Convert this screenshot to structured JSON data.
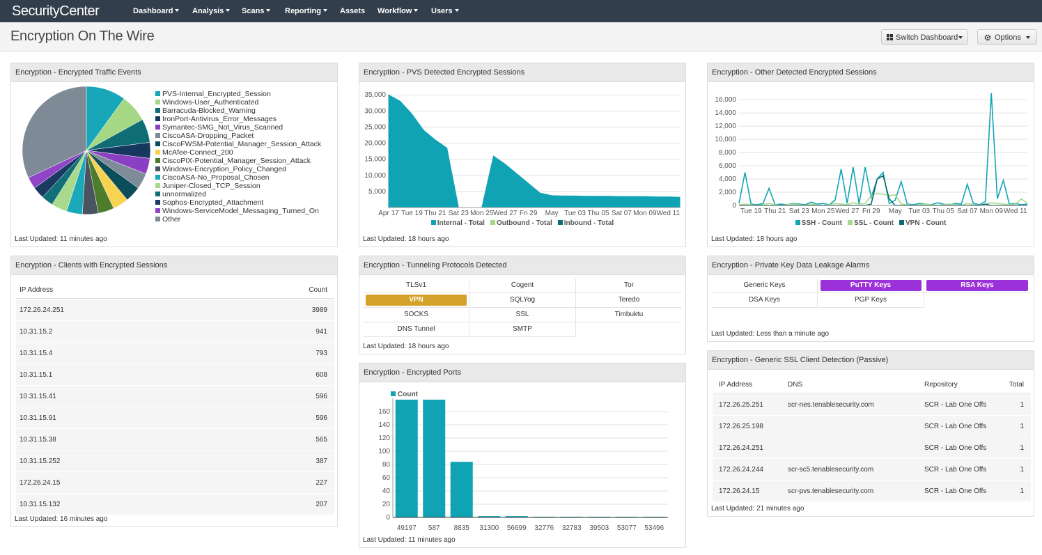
{
  "header": {
    "brand": "SecurityCenter",
    "nav": [
      "Dashboard",
      "Analysis",
      "Scans",
      "Reporting",
      "Assets",
      "Workflow",
      "Users"
    ]
  },
  "page": {
    "title": "Encryption On The Wire",
    "buttons": [
      "Switch Dashboard",
      "Options"
    ]
  },
  "widgets": {
    "traffic": {
      "title": "Encryption - Encrypted Traffic Events",
      "updated": "Last Updated: 11 minutes ago",
      "chart": {
        "type": "pie",
        "categories": [
          "PVS-Internal_Encrypted_Session",
          "Windows-User_Authenticated",
          "Barracuda-Blocked_Warning",
          "IronPort-Antivirus_Error_Messages",
          "Symantec-SMG_Not_Virus_Scanned",
          "CiscoASA-Dropping_Packet",
          "CiscoFWSM-Potential_Manager_Session_Attack",
          "McAfee-Connect_200",
          "CiscoPIX-Potential_Manager_Session_Attack",
          "Windows-Encryption_Policy_Changed",
          "CiscoASA-No_Proposal_Chosen",
          "Juniper-Closed_TCP_Session",
          "unnormalized",
          "Sophos-Encrypted_Attachment",
          "Windows-ServiceModel_Messaging_Turned_On",
          "Other"
        ],
        "values": [
          10,
          7,
          6,
          4,
          4,
          4,
          4,
          4,
          4,
          4,
          4,
          4,
          3,
          3,
          3,
          32
        ],
        "colors": [
          "#17a7b8",
          "#a4d884",
          "#0f6d76",
          "#16385f",
          "#8b3fc2",
          "#7e8b98",
          "#0b4e5a",
          "#f8d251",
          "#4d7c2c",
          "#4a5360",
          "#1aa9b9",
          "#a9d98c",
          "#116f78",
          "#1b3a62",
          "#9045c9",
          "#7f8a97"
        ]
      }
    },
    "pvs": {
      "title": "Encryption - PVS Detected Encrypted Sessions",
      "updated": "Last Updated: 18 hours ago",
      "chart": {
        "type": "area",
        "categories": [
          "Apr 17",
          null,
          "Tue 19",
          null,
          "Thu 21",
          null,
          "Sat 23",
          null,
          "Mon 25",
          null,
          "Wed 27",
          null,
          "Fri 29",
          null,
          "May",
          null,
          "Tue 03",
          null,
          "Thu 05",
          null,
          "Sat 07",
          null,
          "Mon 09",
          null,
          "Wed 11",
          null
        ],
        "series": [
          {
            "name": "Internal - Total",
            "color": "#10a3b3",
            "values": [
              35000,
              33000,
              29000,
              24000,
              21000,
              18500,
              0,
              0,
              0,
              16000,
              13500,
              10500,
              7500,
              4500,
              3700,
              3600,
              3600,
              3500,
              3500,
              3500,
              3400,
              3400,
              3400,
              3300,
              3300,
              3200
            ]
          },
          {
            "name": "Outbound - Total",
            "color": "#a4d884",
            "values": [
              0,
              0,
              0,
              0,
              0,
              0,
              0,
              0,
              0,
              0,
              0,
              0,
              0,
              0,
              0,
              0,
              0,
              0,
              0,
              0,
              0,
              0,
              0,
              0,
              0,
              0
            ]
          },
          {
            "name": "Inbound - Total",
            "color": "#0f6d76",
            "values": [
              0,
              0,
              0,
              0,
              0,
              0,
              0,
              0,
              0,
              0,
              0,
              0,
              0,
              0,
              0,
              0,
              0,
              0,
              0,
              0,
              0,
              0,
              0,
              0,
              0,
              0
            ]
          }
        ],
        "ylim": [
          0,
          37000
        ],
        "yticks": [
          {
            "value": 5000,
            "label": "5,000"
          },
          {
            "value": 10000,
            "label": "10,000"
          },
          {
            "value": 15000,
            "label": "15,000"
          },
          {
            "value": 20000,
            "label": "20,000"
          },
          {
            "value": 25000,
            "label": "25,000"
          },
          {
            "value": 30000,
            "label": "30,000"
          },
          {
            "value": 35000,
            "label": "35,000"
          }
        ],
        "grid": true
      }
    },
    "other": {
      "title": "Encryption - Other Detected Encrypted Sessions",
      "updated": "Last Updated: 18 hours ago",
      "chart": {
        "type": "line",
        "categories": [
          null,
          null,
          "Tue 19",
          null,
          null,
          null,
          "Thu 21",
          null,
          null,
          null,
          "Sat 23",
          null,
          null,
          null,
          "Mon 25",
          null,
          null,
          null,
          "Wed 27",
          null,
          null,
          null,
          "Fri 29",
          null,
          null,
          null,
          "May",
          null,
          null,
          null,
          "Tue 03",
          null,
          null,
          null,
          "Thu 05",
          null,
          null,
          null,
          "Sat 07",
          null,
          null,
          null,
          "Mon 09",
          null,
          null,
          null,
          "Wed 11",
          null,
          null
        ],
        "series": [
          {
            "name": "SSH - Count",
            "color": "#12a5b5",
            "values": [
              300,
              5000,
              200,
              100,
              300,
              2600,
              100,
              200,
              100,
              300,
              200,
              100,
              500,
              200,
              300,
              100,
              800,
              5500,
              300,
              5800,
              200,
              5800,
              1200,
              4000,
              5000,
              300,
              800,
              3600,
              200,
              100,
              300,
              200,
              100,
              400,
              200,
              100,
              300,
              200,
              3200,
              300,
              100,
              600,
              17000,
              1000,
              3800,
              200,
              300,
              100,
              200
            ]
          },
          {
            "name": "SSL - Count",
            "color": "#a6d98b",
            "values": [
              100,
              200,
              100,
              0,
              100,
              300,
              100,
              0,
              100,
              200,
              100,
              0,
              200,
              100,
              0,
              100,
              300,
              200,
              100,
              400,
              200,
              300,
              1500,
              1800,
              1700,
              1500,
              1600,
              200,
              100,
              0,
              100,
              200,
              100,
              0,
              100,
              200,
              100,
              0,
              300,
              100,
              0,
              200,
              400,
              300,
              200,
              100,
              200,
              1000,
              300
            ]
          },
          {
            "name": "VPN - Count",
            "color": "#0d6b72",
            "values": [
              0,
              0,
              0,
              0,
              0,
              0,
              0,
              0,
              0,
              0,
              0,
              0,
              0,
              0,
              0,
              0,
              0,
              0,
              0,
              0,
              0,
              0,
              200,
              4000,
              4500,
              1000,
              0,
              0,
              0,
              0,
              0,
              0,
              0,
              0,
              0,
              0,
              0,
              0,
              0,
              0,
              0,
              200,
              0,
              0,
              0,
              0,
              0,
              0,
              0
            ]
          }
        ],
        "ylim": [
          0,
          17500
        ],
        "yticks": [
          0,
          {
            "value": 2000,
            "label": "2,000"
          },
          {
            "value": 4000,
            "label": "4,000"
          },
          {
            "value": 6000,
            "label": "6,000"
          },
          {
            "value": 8000,
            "label": "8,000"
          },
          {
            "value": 10000,
            "label": "10,000"
          },
          {
            "value": 12000,
            "label": "12,000"
          },
          {
            "value": 14000,
            "label": "14,000"
          },
          {
            "value": 16000,
            "label": "16,000"
          }
        ],
        "grid": true
      }
    },
    "clients": {
      "title": "Encryption - Clients with Encrypted Sessions",
      "updated": "Last Updated: 16 minutes ago",
      "table": {
        "columns": [
          "IP Address",
          "Count"
        ],
        "rows": [
          [
            "172.26.24.251",
            3989
          ],
          [
            "10.31.15.2",
            941
          ],
          [
            "10.31.15.4",
            793
          ],
          [
            "10.31.15.1",
            608
          ],
          [
            "10.31.15.41",
            596
          ],
          [
            "10.31.15.91",
            596
          ],
          [
            "10.31.15.38",
            565
          ],
          [
            "10.31.15.252",
            387
          ],
          [
            "172.26.24.15",
            227
          ],
          [
            "10.31.15.132",
            207
          ]
        ]
      }
    },
    "tunneling": {
      "title": "Encryption - Tunneling Protocols Detected",
      "updated": "Last Updated: 18 hours ago",
      "grid": [
        [
          {
            "label": "TLSv1"
          },
          {
            "label": "Cogent"
          },
          {
            "label": "Tor"
          }
        ],
        [
          {
            "label": "VPN",
            "color": "#d4a12a"
          },
          {
            "label": "SQLYog"
          },
          {
            "label": "Teredo"
          }
        ],
        [
          {
            "label": "SOCKS"
          },
          {
            "label": "SSL"
          },
          {
            "label": "Timbuktu"
          }
        ],
        [
          {
            "label": "DNS Tunnel"
          },
          {
            "label": "SMTP"
          }
        ]
      ]
    },
    "ports": {
      "title": "Encryption - Encrypted Ports",
      "updated": "Last Updated: 11 minutes ago",
      "chart": {
        "type": "bar",
        "categories": [
          "49197",
          "587",
          "8835",
          "31300",
          "56699",
          "32776",
          "32783",
          "39503",
          "53077",
          "53496"
        ],
        "series": [
          {
            "name": "Count",
            "color": "#0fa3b4",
            "values": [
              178,
              178,
              84,
              2,
              2,
              1,
              1,
              1,
              1,
              1
            ]
          }
        ],
        "ylim": [
          0,
          180
        ],
        "yticks": [
          0,
          20,
          40,
          60,
          80,
          100,
          120,
          140,
          160
        ],
        "grid": true
      }
    },
    "keys": {
      "title": "Encryption - Private Key Data Leakage Alarms",
      "updated": "Last Updated: Less than a minute ago",
      "grid": [
        [
          {
            "label": "Generic Keys"
          },
          {
            "label": "PuTTY Keys",
            "color": "#9b31d8"
          },
          {
            "label": "RSA Keys",
            "color": "#9b31d8"
          }
        ],
        [
          {
            "label": "DSA Keys"
          },
          {
            "label": "PGP Keys"
          }
        ]
      ]
    },
    "ssl": {
      "title": "Encryption - Generic SSL Client Detection (Passive)",
      "updated": "Last Updated: 21 minutes ago",
      "table": {
        "columns": [
          "IP Address",
          "DNS",
          "Repository",
          "Total"
        ],
        "rows": [
          [
            "172.26.25.251",
            "scr-nes.tenablesecurity.com",
            "SCR - Lab One Offs",
            1
          ],
          [
            "172.26.25.198",
            null,
            "SCR - Lab One Offs",
            1
          ],
          [
            "172.26.24.251",
            null,
            "SCR - Lab One Offs",
            1
          ],
          [
            "172.26.24.244",
            "scr-sc5.tenablesecurity.com",
            "SCR - Lab One Offs",
            1
          ],
          [
            "172.26.24.15",
            "scr-pvs.tenablesecurity.com",
            "SCR - Lab One Offs",
            1
          ]
        ]
      }
    }
  }
}
